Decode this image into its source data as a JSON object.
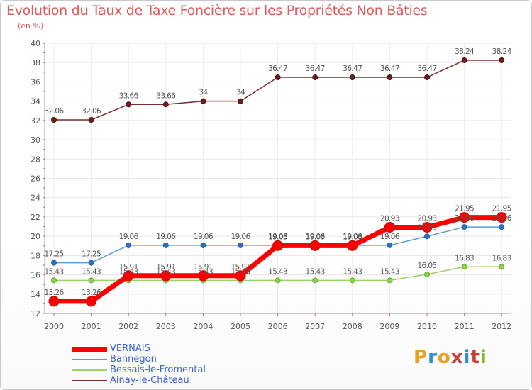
{
  "header": {
    "title": "Evolution du Taux de Taxe Foncière sur les Propriétés Non Bâties",
    "subtitle": "(en %)"
  },
  "logo": {
    "text": "Proxiti",
    "colors": [
      "#e8a020",
      "#2a8fd0",
      "#e8a020",
      "#d03a3a",
      "#2a8fd0",
      "#d03a3a",
      "#7ab82a"
    ]
  },
  "chart_data": {
    "type": "line",
    "categories": [
      "2000",
      "2001",
      "2002",
      "2003",
      "2004",
      "2005",
      "2006",
      "2007",
      "2008",
      "2009",
      "2010",
      "2011",
      "2012"
    ],
    "ylim": [
      12,
      40
    ],
    "yticks": [
      12,
      14,
      16,
      18,
      20,
      22,
      24,
      26,
      28,
      30,
      32,
      34,
      36,
      38,
      40
    ],
    "grid": true,
    "legend_position": "bottom-left",
    "series": [
      {
        "name": "Ainay-le-Château",
        "color": "#7a2e2e",
        "values": [
          32.06,
          32.06,
          33.66,
          33.66,
          34,
          34,
          36.47,
          36.47,
          36.47,
          36.47,
          36.47,
          38.24,
          38.24
        ],
        "labels": [
          "32.06",
          "32.06",
          "33.66",
          "33.66",
          "34",
          "34",
          "36.47",
          "36.47",
          "36.47",
          "36.47",
          "36.47",
          "38.24",
          "38.24"
        ]
      },
      {
        "name": "Bessais-le-Fromental",
        "color": "#9ad36a",
        "values": [
          15.43,
          15.43,
          15.43,
          15.43,
          15.43,
          15.43,
          15.43,
          15.43,
          15.43,
          15.43,
          16.05,
          16.83,
          16.83
        ],
        "labels": [
          "15.43",
          "15.43",
          "15.43",
          "15.43",
          "15.43",
          "15.43",
          "15.43",
          "15.43",
          "15.43",
          "15.43",
          "16.05",
          "16.83",
          "16.83"
        ]
      },
      {
        "name": "Bannegon",
        "color": "#5a9bd5",
        "values": [
          17.25,
          17.25,
          19.06,
          19.06,
          19.06,
          19.06,
          19.06,
          19.06,
          19.06,
          19.06,
          19.99,
          20.96,
          20.96
        ],
        "labels": [
          "17.25",
          "17.25",
          "19.06",
          "19.06",
          "19.06",
          "19.06",
          "19.06",
          "19.06",
          "19.06",
          "19.06",
          "19.99",
          "20.96",
          "20.96"
        ]
      },
      {
        "name": "VERNAIS",
        "color": "#ff0000",
        "values": [
          13.26,
          13.26,
          15.91,
          15.91,
          15.91,
          15.91,
          19.03,
          19.03,
          19.03,
          20.93,
          20.93,
          21.95,
          21.95
        ],
        "labels": [
          "13.26",
          "13.26",
          "15.91",
          "15.91",
          "15.91",
          "15.91",
          "19.03",
          "19.03",
          "19.03",
          "20.93",
          "20.93",
          "21.95",
          "21.95"
        ]
      }
    ],
    "legend_order": [
      "VERNAIS",
      "Bannegon",
      "Bessais-le-Fromental",
      "Ainay-le-Château"
    ]
  }
}
